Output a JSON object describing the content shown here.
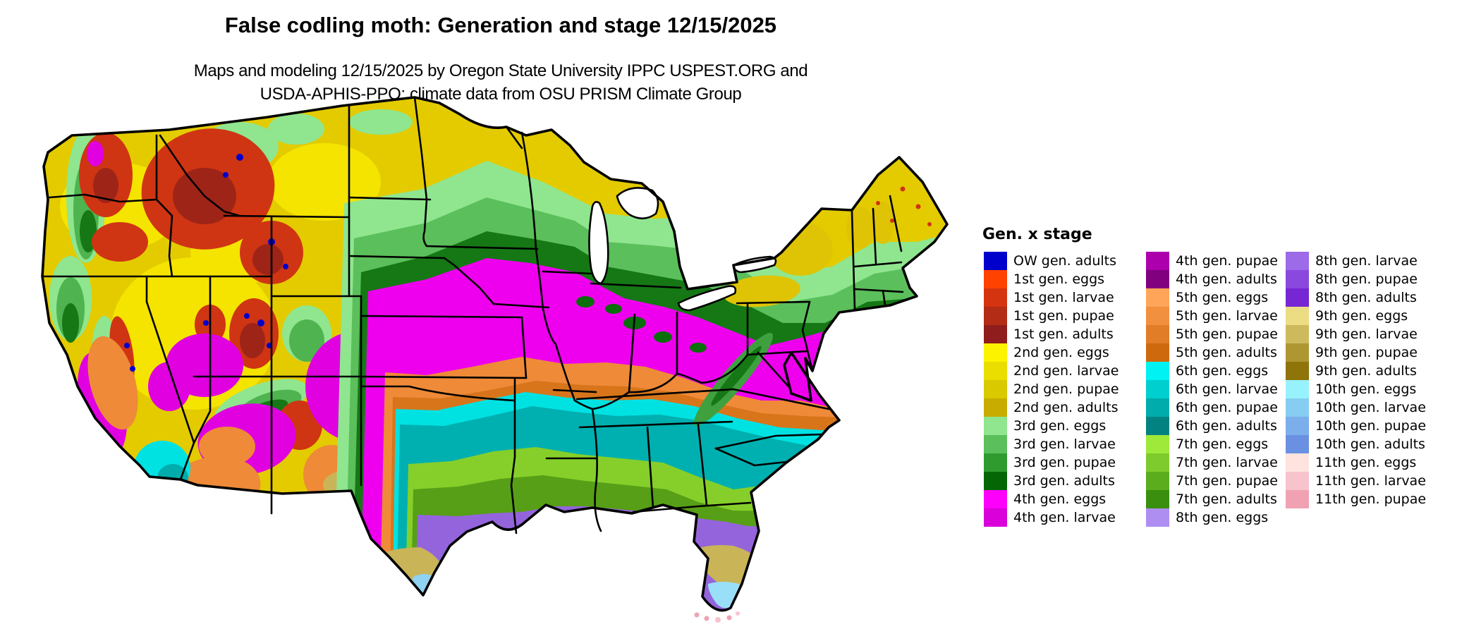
{
  "title": "False codling moth: Generation and stage 12/15/2025",
  "subtitle_line1": "Maps and modeling 12/15/2025 by Oregon State University IPPC USPEST.ORG and",
  "subtitle_line2": "USDA-APHIS-PPQ; climate data from OSU PRISM Climate Group",
  "legend": {
    "title": "Gen. x stage",
    "columns": [
      [
        {
          "label": "OW gen. adults",
          "color": "#0000CD"
        },
        {
          "label": "1st gen. eggs",
          "color": "#FF4200"
        },
        {
          "label": "1st gen. larvae",
          "color": "#D53411"
        },
        {
          "label": "1st gen. pupae",
          "color": "#B32C15"
        },
        {
          "label": "1st gen. adults",
          "color": "#8F1D1D"
        },
        {
          "label": "2nd gen. eggs",
          "color": "#FBF300"
        },
        {
          "label": "2nd gen. larvae",
          "color": "#EADE00"
        },
        {
          "label": "2nd gen. pupae",
          "color": "#D9C900"
        },
        {
          "label": "2nd gen. adults",
          "color": "#C8AD00"
        },
        {
          "label": "3rd gen. eggs",
          "color": "#8FE68F"
        },
        {
          "label": "3rd gen. larvae",
          "color": "#5BBF5B"
        },
        {
          "label": "3rd gen. pupae",
          "color": "#2F9B2F"
        },
        {
          "label": "3rd gen. adults",
          "color": "#056605"
        },
        {
          "label": "4th gen. eggs",
          "color": "#FC00FC"
        },
        {
          "label": "4th gen. larvae",
          "color": "#D900D9"
        }
      ],
      [
        {
          "label": "4th gen. pupae",
          "color": "#AC00AC"
        },
        {
          "label": "4th gen. adults",
          "color": "#800080"
        },
        {
          "label": "5th gen. eggs",
          "color": "#FFA55A"
        },
        {
          "label": "5th gen. larvae",
          "color": "#F19140"
        },
        {
          "label": "5th gen. pupae",
          "color": "#E07D26"
        },
        {
          "label": "5th gen. adults",
          "color": "#CE690D"
        },
        {
          "label": "6th gen. eggs",
          "color": "#00F2F2"
        },
        {
          "label": "6th gen. larvae",
          "color": "#00CFCF"
        },
        {
          "label": "6th gen. pupae",
          "color": "#00ACAC"
        },
        {
          "label": "6th gen. adults",
          "color": "#038282"
        },
        {
          "label": "7th gen. eggs",
          "color": "#9FE93B"
        },
        {
          "label": "7th gen. larvae",
          "color": "#7ECB2D"
        },
        {
          "label": "7th gen. pupae",
          "color": "#5CAD1E"
        },
        {
          "label": "7th gen. adults",
          "color": "#3A8F0F"
        },
        {
          "label": "8th gen. eggs",
          "color": "#AF8EF2"
        }
      ],
      [
        {
          "label": "8th gen. larvae",
          "color": "#9D6BE8"
        },
        {
          "label": "8th gen. pupae",
          "color": "#8A48DE"
        },
        {
          "label": "8th gen. adults",
          "color": "#7726D3"
        },
        {
          "label": "9th gen. eggs",
          "color": "#ECDD85"
        },
        {
          "label": "9th gen. larvae",
          "color": "#CDBA5C"
        },
        {
          "label": "9th gen. pupae",
          "color": "#AE9733"
        },
        {
          "label": "9th gen. adults",
          "color": "#8F740A"
        },
        {
          "label": "10th gen. eggs",
          "color": "#97F2FE"
        },
        {
          "label": "10th gen. larvae",
          "color": "#86CDF1"
        },
        {
          "label": "10th gen. pupae",
          "color": "#7BAEEA"
        },
        {
          "label": "10th gen. adults",
          "color": "#6A91E1"
        },
        {
          "label": "11th gen. eggs",
          "color": "#FFE3DE"
        },
        {
          "label": "11th gen. larvae",
          "color": "#F7C3CD"
        },
        {
          "label": "11th gen. pupae",
          "color": "#F0A2B2"
        }
      ]
    ]
  }
}
